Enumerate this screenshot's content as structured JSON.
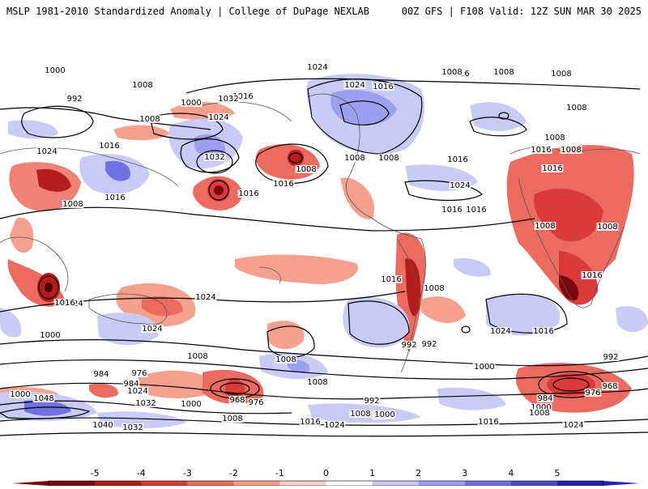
{
  "header": {
    "title_left": "MSLP 1981-2010 Standardized Anomaly | College of DuPage NEXLAB",
    "title_right": "00Z GFS | F108 Valid: 12Z SUN MAR 30 2025"
  },
  "colorbar": {
    "labels": [
      "-5",
      "-4",
      "-3",
      "-2",
      "-1",
      "0",
      "1",
      "2",
      "3",
      "4",
      "5"
    ],
    "colors": [
      "#7a0a0a",
      "#b51c1c",
      "#d93b3b",
      "#ec6b60",
      "#f6a08f",
      "#fcd3c8",
      "#ffffff",
      "#c9caf5",
      "#9d9ff0",
      "#7072e0",
      "#4a4bcf",
      "#2222b0"
    ]
  },
  "map": {
    "isobar_labels": [
      "1000",
      "992",
      "1008",
      "1000",
      "1016",
      "1008",
      "1024",
      "1032",
      "1024",
      "1016",
      "1008",
      "1032",
      "1024",
      "1008",
      "1016",
      "1016",
      "1016",
      "1008",
      "1008",
      "1016",
      "1024",
      "1016",
      "1016",
      "1008",
      "1024",
      "1016",
      "1008",
      "1008",
      "1008",
      "1016",
      "1016",
      "1016",
      "1008",
      "1008",
      "1008",
      "1016",
      "1024",
      "1024",
      "1024",
      "1016",
      "1000",
      "1024",
      "1008",
      "1008",
      "1008",
      "992",
      "1000",
      "992",
      "984",
      "976",
      "984",
      "1024",
      "1032",
      "968",
      "976",
      "1000",
      "1000",
      "992",
      "1048",
      "1040",
      "1032",
      "1008",
      "1016",
      "1024",
      "1000",
      "992",
      "984",
      "976",
      "968",
      "1000",
      "1008",
      "1016",
      "1024",
      "1008",
      "1000",
      "1024",
      "1016",
      "1008",
      "1008",
      "1000",
      "1016",
      "1000"
    ]
  }
}
